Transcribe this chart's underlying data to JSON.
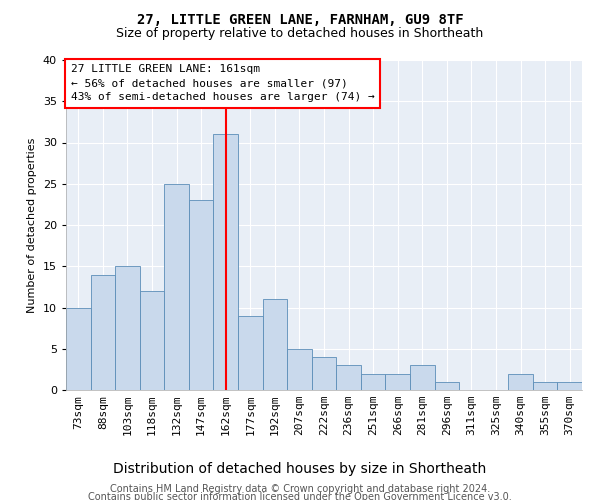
{
  "title1": "27, LITTLE GREEN LANE, FARNHAM, GU9 8TF",
  "title2": "Size of property relative to detached houses in Shortheath",
  "xlabel": "Distribution of detached houses by size in Shortheath",
  "ylabel": "Number of detached properties",
  "bar_labels": [
    "73sqm",
    "88sqm",
    "103sqm",
    "118sqm",
    "132sqm",
    "147sqm",
    "162sqm",
    "177sqm",
    "192sqm",
    "207sqm",
    "222sqm",
    "236sqm",
    "251sqm",
    "266sqm",
    "281sqm",
    "296sqm",
    "311sqm",
    "325sqm",
    "340sqm",
    "355sqm",
    "370sqm"
  ],
  "bar_values": [
    10,
    14,
    15,
    12,
    25,
    23,
    31,
    9,
    11,
    5,
    4,
    3,
    2,
    2,
    3,
    1,
    0,
    0,
    2,
    1,
    1
  ],
  "bar_color": "#c9d9ec",
  "bar_edge_color": "#5b8db8",
  "reference_line_label": "162sqm",
  "annotation_text": "27 LITTLE GREEN LANE: 161sqm\n← 56% of detached houses are smaller (97)\n43% of semi-detached houses are larger (74) →",
  "annotation_box_color": "white",
  "annotation_box_edge_color": "red",
  "ref_line_color": "red",
  "ylim": [
    0,
    40
  ],
  "yticks": [
    0,
    5,
    10,
    15,
    20,
    25,
    30,
    35,
    40
  ],
  "background_color": "#e8eef6",
  "footer_line1": "Contains HM Land Registry data © Crown copyright and database right 2024.",
  "footer_line2": "Contains public sector information licensed under the Open Government Licence v3.0.",
  "title1_fontsize": 10,
  "title2_fontsize": 9,
  "xlabel_fontsize": 10,
  "ylabel_fontsize": 8,
  "tick_fontsize": 8,
  "annotation_fontsize": 8,
  "footer_fontsize": 7
}
